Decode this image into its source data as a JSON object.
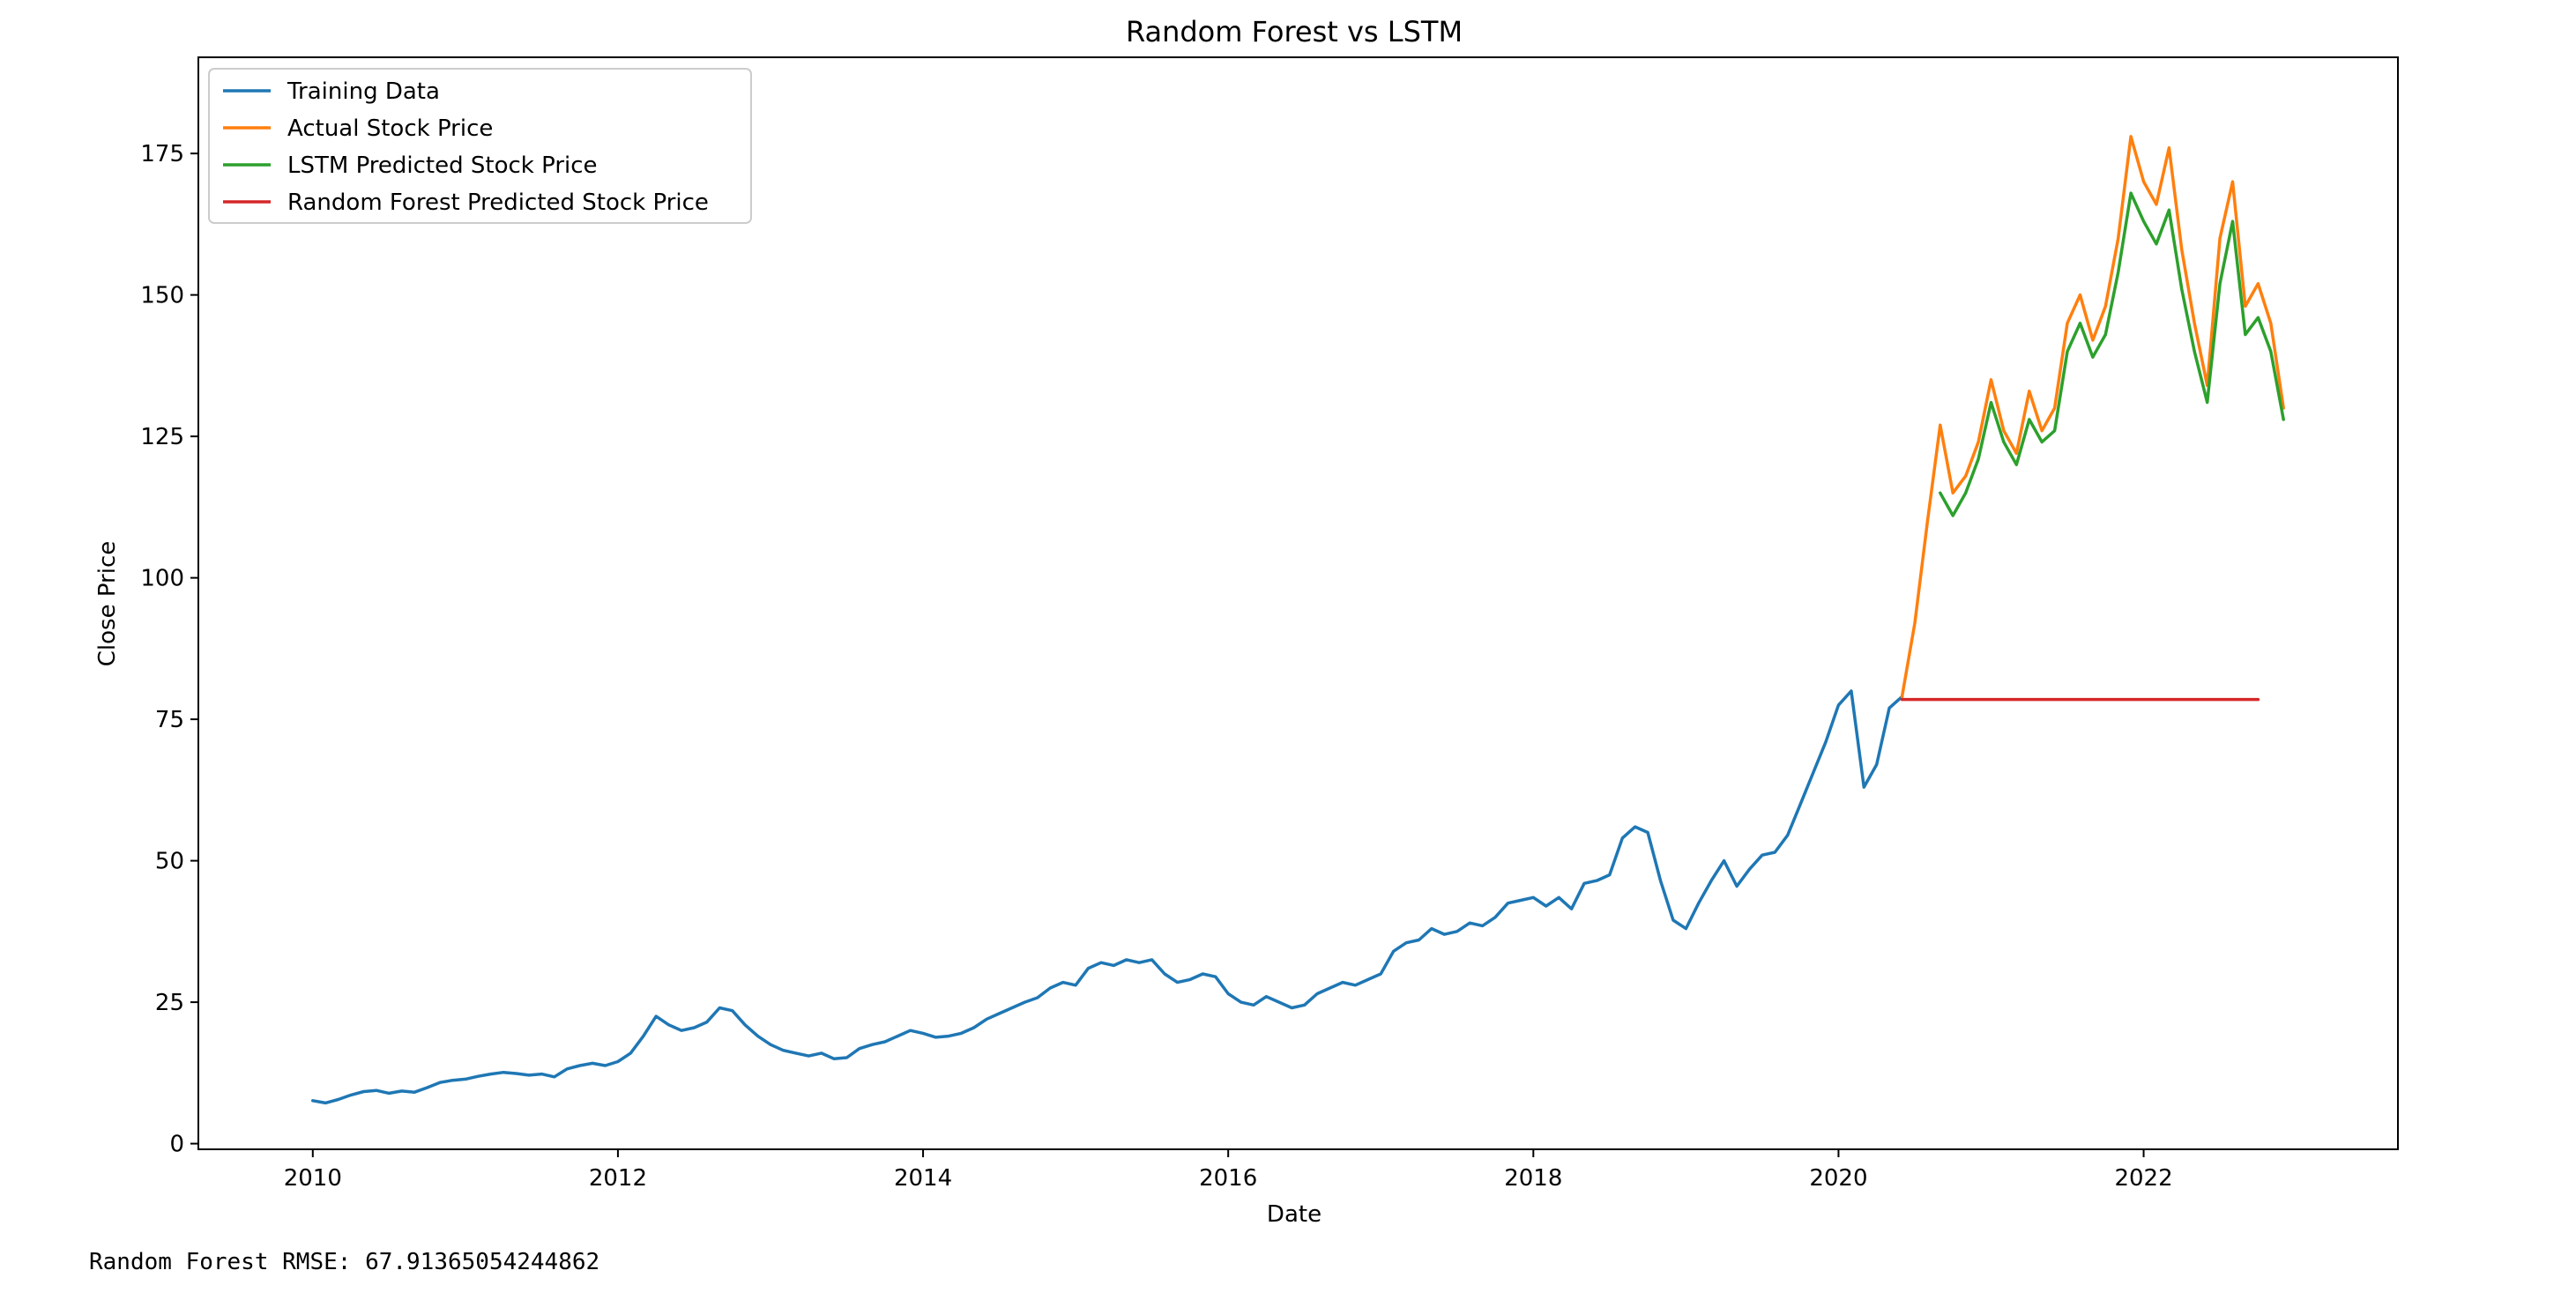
{
  "chart_data": {
    "type": "line",
    "title": "Random Forest vs LSTM",
    "xlabel": "Date",
    "ylabel": "Close Price",
    "xlim": [
      "2009-04",
      "2023-09"
    ],
    "ylim": [
      -1,
      192
    ],
    "x_ticks": [
      "2010",
      "2012",
      "2014",
      "2016",
      "2018",
      "2020",
      "2022"
    ],
    "y_ticks": [
      0,
      25,
      50,
      75,
      100,
      125,
      150,
      175
    ],
    "grid": false,
    "legend_position": "upper left",
    "colors": {
      "training": "#1f77b4",
      "actual": "#ff7f0e",
      "lstm": "#2ca02c",
      "rf": "#d62728"
    },
    "series": [
      {
        "name": "Training Data",
        "key": "training",
        "points": [
          [
            "2010-01",
            7.6
          ],
          [
            "2010-02",
            7.2
          ],
          [
            "2010-03",
            7.8
          ],
          [
            "2010-04",
            8.6
          ],
          [
            "2010-05",
            9.2
          ],
          [
            "2010-06",
            9.4
          ],
          [
            "2010-07",
            8.9
          ],
          [
            "2010-08",
            9.3
          ],
          [
            "2010-09",
            9.1
          ],
          [
            "2010-10",
            9.9
          ],
          [
            "2010-11",
            10.8
          ],
          [
            "2010-12",
            11.2
          ],
          [
            "2011-01",
            11.4
          ],
          [
            "2011-02",
            11.9
          ],
          [
            "2011-03",
            12.3
          ],
          [
            "2011-04",
            12.6
          ],
          [
            "2011-05",
            12.4
          ],
          [
            "2011-06",
            12.1
          ],
          [
            "2011-07",
            12.3
          ],
          [
            "2011-08",
            11.8
          ],
          [
            "2011-09",
            13.2
          ],
          [
            "2011-10",
            13.8
          ],
          [
            "2011-11",
            14.2
          ],
          [
            "2011-12",
            13.8
          ],
          [
            "2012-01",
            14.5
          ],
          [
            "2012-02",
            16.0
          ],
          [
            "2012-03",
            19.0
          ],
          [
            "2012-04",
            22.5
          ],
          [
            "2012-05",
            21.0
          ],
          [
            "2012-06",
            20.0
          ],
          [
            "2012-07",
            20.5
          ],
          [
            "2012-08",
            21.5
          ],
          [
            "2012-09",
            24.0
          ],
          [
            "2012-10",
            23.5
          ],
          [
            "2012-11",
            21.0
          ],
          [
            "2012-12",
            19.0
          ],
          [
            "2013-01",
            17.5
          ],
          [
            "2013-02",
            16.5
          ],
          [
            "2013-03",
            16.0
          ],
          [
            "2013-04",
            15.5
          ],
          [
            "2013-05",
            16.0
          ],
          [
            "2013-06",
            15.0
          ],
          [
            "2013-07",
            15.2
          ],
          [
            "2013-08",
            16.8
          ],
          [
            "2013-09",
            17.5
          ],
          [
            "2013-10",
            18.0
          ],
          [
            "2013-11",
            19.0
          ],
          [
            "2013-12",
            20.0
          ],
          [
            "2014-01",
            19.5
          ],
          [
            "2014-02",
            18.8
          ],
          [
            "2014-03",
            19.0
          ],
          [
            "2014-04",
            19.5
          ],
          [
            "2014-05",
            20.5
          ],
          [
            "2014-06",
            22.0
          ],
          [
            "2014-07",
            23.0
          ],
          [
            "2014-08",
            24.0
          ],
          [
            "2014-09",
            25.0
          ],
          [
            "2014-10",
            25.8
          ],
          [
            "2014-11",
            27.5
          ],
          [
            "2014-12",
            28.5
          ],
          [
            "2015-01",
            28.0
          ],
          [
            "2015-02",
            31.0
          ],
          [
            "2015-03",
            32.0
          ],
          [
            "2015-04",
            31.5
          ],
          [
            "2015-05",
            32.5
          ],
          [
            "2015-06",
            32.0
          ],
          [
            "2015-07",
            32.5
          ],
          [
            "2015-08",
            30.0
          ],
          [
            "2015-09",
            28.5
          ],
          [
            "2015-10",
            29.0
          ],
          [
            "2015-11",
            30.0
          ],
          [
            "2015-12",
            29.5
          ],
          [
            "2016-01",
            26.5
          ],
          [
            "2016-02",
            25.0
          ],
          [
            "2016-03",
            24.5
          ],
          [
            "2016-04",
            26.0
          ],
          [
            "2016-05",
            25.0
          ],
          [
            "2016-06",
            24.0
          ],
          [
            "2016-07",
            24.5
          ],
          [
            "2016-08",
            26.5
          ],
          [
            "2016-09",
            27.5
          ],
          [
            "2016-10",
            28.5
          ],
          [
            "2016-11",
            28.0
          ],
          [
            "2016-12",
            29.0
          ],
          [
            "2017-01",
            30.0
          ],
          [
            "2017-02",
            34.0
          ],
          [
            "2017-03",
            35.5
          ],
          [
            "2017-04",
            36.0
          ],
          [
            "2017-05",
            38.0
          ],
          [
            "2017-06",
            37.0
          ],
          [
            "2017-07",
            37.5
          ],
          [
            "2017-08",
            39.0
          ],
          [
            "2017-09",
            38.5
          ],
          [
            "2017-10",
            40.0
          ],
          [
            "2017-11",
            42.5
          ],
          [
            "2017-12",
            43.0
          ],
          [
            "2018-01",
            43.5
          ],
          [
            "2018-02",
            42.0
          ],
          [
            "2018-03",
            43.5
          ],
          [
            "2018-04",
            41.5
          ],
          [
            "2018-05",
            46.0
          ],
          [
            "2018-06",
            46.5
          ],
          [
            "2018-07",
            47.5
          ],
          [
            "2018-08",
            54.0
          ],
          [
            "2018-09",
            56.0
          ],
          [
            "2018-10",
            55.0
          ],
          [
            "2018-11",
            46.5
          ],
          [
            "2018-12",
            39.5
          ],
          [
            "2019-01",
            38.0
          ],
          [
            "2019-02",
            42.5
          ],
          [
            "2019-03",
            46.5
          ],
          [
            "2019-04",
            50.0
          ],
          [
            "2019-05",
            45.5
          ],
          [
            "2019-06",
            48.5
          ],
          [
            "2019-07",
            51.0
          ],
          [
            "2019-08",
            51.5
          ],
          [
            "2019-09",
            54.5
          ],
          [
            "2019-10",
            60.0
          ],
          [
            "2019-11",
            65.5
          ],
          [
            "2019-12",
            71.0
          ],
          [
            "2020-01",
            77.5
          ],
          [
            "2020-02",
            80.0
          ],
          [
            "2020-03",
            63.0
          ],
          [
            "2020-04",
            67.0
          ],
          [
            "2020-05",
            77.0
          ],
          [
            "2020-06",
            79.0
          ]
        ]
      },
      {
        "name": "Actual Stock Price",
        "key": "actual",
        "points": [
          [
            "2020-06",
            79.0
          ],
          [
            "2020-07",
            92.0
          ],
          [
            "2020-08",
            110.0
          ],
          [
            "2020-09",
            127.0
          ],
          [
            "2020-10",
            115.0
          ],
          [
            "2020-11",
            118.0
          ],
          [
            "2020-12",
            124.0
          ],
          [
            "2021-01",
            135.0
          ],
          [
            "2021-02",
            126.0
          ],
          [
            "2021-03",
            122.0
          ],
          [
            "2021-04",
            133.0
          ],
          [
            "2021-05",
            126.0
          ],
          [
            "2021-06",
            130.0
          ],
          [
            "2021-07",
            145.0
          ],
          [
            "2021-08",
            150.0
          ],
          [
            "2021-09",
            142.0
          ],
          [
            "2021-10",
            148.0
          ],
          [
            "2021-11",
            160.0
          ],
          [
            "2021-12",
            178.0
          ],
          [
            "2022-01",
            170.0
          ],
          [
            "2022-02",
            166.0
          ],
          [
            "2022-03",
            176.0
          ],
          [
            "2022-04",
            158.0
          ],
          [
            "2022-05",
            145.0
          ],
          [
            "2022-06",
            134.0
          ],
          [
            "2022-07",
            160.0
          ],
          [
            "2022-08",
            170.0
          ],
          [
            "2022-09",
            148.0
          ],
          [
            "2022-10",
            152.0
          ],
          [
            "2022-11",
            145.0
          ],
          [
            "2022-12",
            130.0
          ]
        ]
      },
      {
        "name": "LSTM Predicted Stock Price",
        "key": "lstm",
        "points": [
          [
            "2020-09",
            115.0
          ],
          [
            "2020-10",
            111.0
          ],
          [
            "2020-11",
            115.0
          ],
          [
            "2020-12",
            121.0
          ],
          [
            "2021-01",
            131.0
          ],
          [
            "2021-02",
            124.0
          ],
          [
            "2021-03",
            120.0
          ],
          [
            "2021-04",
            128.0
          ],
          [
            "2021-05",
            124.0
          ],
          [
            "2021-06",
            126.0
          ],
          [
            "2021-07",
            140.0
          ],
          [
            "2021-08",
            145.0
          ],
          [
            "2021-09",
            139.0
          ],
          [
            "2021-10",
            143.0
          ],
          [
            "2021-11",
            154.0
          ],
          [
            "2021-12",
            168.0
          ],
          [
            "2022-01",
            163.0
          ],
          [
            "2022-02",
            159.0
          ],
          [
            "2022-03",
            165.0
          ],
          [
            "2022-04",
            151.0
          ],
          [
            "2022-05",
            140.0
          ],
          [
            "2022-06",
            131.0
          ],
          [
            "2022-07",
            152.0
          ],
          [
            "2022-08",
            163.0
          ],
          [
            "2022-09",
            143.0
          ],
          [
            "2022-10",
            146.0
          ],
          [
            "2022-11",
            140.0
          ],
          [
            "2022-12",
            128.0
          ]
        ]
      },
      {
        "name": "Random Forest Predicted Stock Price",
        "key": "rf",
        "points": [
          [
            "2020-06",
            78.5
          ],
          [
            "2022-10",
            78.5
          ]
        ]
      }
    ]
  },
  "output_text": "Random Forest RMSE: 67.91365054244862"
}
